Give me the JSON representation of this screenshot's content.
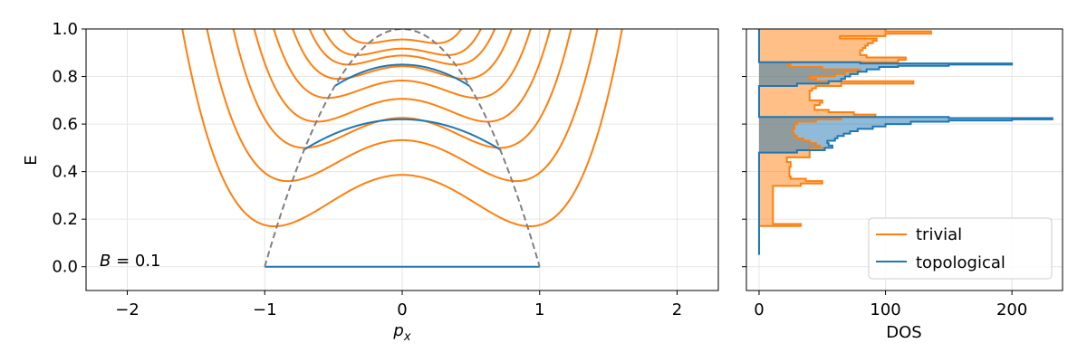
{
  "chart_data": [
    {
      "type": "line",
      "panel": "band structure",
      "xlabel": "p_x",
      "ylabel": "E",
      "xlim": [
        -2.3,
        2.3
      ],
      "ylim": [
        -0.1,
        1.0
      ],
      "xticks": [
        -2,
        -1,
        0,
        1,
        2
      ],
      "xtick_labels": [
        "−2",
        "−1",
        "0",
        "1",
        "2"
      ],
      "yticks": [
        0.0,
        0.2,
        0.4,
        0.6,
        0.8,
        1.0
      ],
      "ytick_labels": [
        "0.0",
        "0.2",
        "0.4",
        "0.6",
        "0.8",
        "1.0"
      ],
      "grid": true,
      "annotation": "B = 0.1",
      "colors": {
        "trivial": "#ff7f0e",
        "topological": "#1f77b4",
        "boundary": "#808080"
      },
      "boundary_curve": {
        "style": "dashed",
        "description": "E = 1 - p_x^2",
        "x_range": [
          -1,
          1
        ]
      },
      "trivial_bands_min": [
        {
          "E_min": 0.17,
          "p_x_at_min": 0.93
        },
        {
          "E_min": 0.36,
          "p_x_at_min": 0.83
        },
        {
          "E_min": 0.5,
          "p_x_at_min": 0.71
        },
        {
          "E_min": 0.61,
          "p_x_at_min": 0.62
        },
        {
          "E_min": 0.71,
          "p_x_at_min": 0.54
        },
        {
          "E_min": 0.79,
          "p_x_at_min": 0.46
        },
        {
          "E_min": 0.85,
          "p_x_at_min": 0.39
        },
        {
          "E_min": 0.89,
          "p_x_at_min": 0.33
        },
        {
          "E_min": 0.94,
          "p_x_at_min": 0.25
        }
      ],
      "topological_bands": [
        {
          "E_at_0": 0.0,
          "p_x_range": [
            -1,
            1
          ]
        },
        {
          "E_at_0": 0.62,
          "p_x_range": [
            -0.72,
            0.72
          ],
          "E_at_ends": 0.49
        },
        {
          "E_at_0": 0.85,
          "p_x_range": [
            -0.49,
            0.49
          ],
          "E_at_ends": 0.76
        }
      ]
    },
    {
      "type": "area",
      "panel": "density of states",
      "xlabel": "DOS",
      "xlim": [
        -10,
        240
      ],
      "ylim": [
        -0.1,
        1.0
      ],
      "xticks": [
        0,
        100,
        200
      ],
      "xtick_labels": [
        "0",
        "100",
        "200"
      ],
      "grid": true,
      "legend": {
        "placement": "lower-right",
        "entries": [
          "trivial",
          "topological"
        ]
      },
      "series": [
        {
          "name": "trivial",
          "color": "#ff7f0e",
          "E": [
            0.17,
            0.171,
            0.18,
            0.18,
            0.25,
            0.25,
            0.33,
            0.34,
            0.35,
            0.36,
            0.37,
            0.38,
            0.38,
            0.42,
            0.44,
            0.45,
            0.46,
            0.46,
            0.5,
            0.5,
            0.51,
            0.52,
            0.53,
            0.54,
            0.55,
            0.56,
            0.56,
            0.58,
            0.6,
            0.61,
            0.61,
            0.62,
            0.63,
            0.64,
            0.65,
            0.66,
            0.66,
            0.68,
            0.69,
            0.7,
            0.7,
            0.71,
            0.72,
            0.73,
            0.74,
            0.75,
            0.76,
            0.76,
            0.77,
            0.78,
            0.78,
            0.79,
            0.79,
            0.8,
            0.81,
            0.82,
            0.83,
            0.84,
            0.84,
            0.85,
            0.85,
            0.86,
            0.86,
            0.87,
            0.88,
            0.89,
            0.89,
            0.9,
            0.91,
            0.92,
            0.93,
            0.94,
            0.95,
            0.96,
            0.97,
            0.98,
            0.99,
            1.0
          ],
          "DOS": [
            0,
            33,
            18,
            11,
            11,
            11,
            11,
            33,
            50,
            37,
            25,
            24,
            24,
            25,
            22,
            22,
            24,
            40,
            52,
            48,
            45,
            40,
            35,
            30,
            28,
            27,
            27,
            28,
            30,
            35,
            45,
            65,
            92,
            75,
            55,
            44,
            44,
            48,
            50,
            43,
            40,
            40,
            40,
            40,
            42,
            45,
            50,
            65,
            122,
            60,
            45,
            42,
            40,
            60,
            68,
            80,
            50,
            28,
            24,
            22,
            25,
            50,
            110,
            116,
            85,
            83,
            80,
            80,
            82,
            84,
            86,
            90,
            93,
            64,
            100,
            136,
            100,
            100
          ]
        },
        {
          "name": "topological",
          "color": "#1f77b4",
          "E": [
            0.05,
            0.3,
            0.46,
            0.47,
            0.48,
            0.49,
            0.5,
            0.51,
            0.52,
            0.53,
            0.54,
            0.55,
            0.56,
            0.57,
            0.58,
            0.59,
            0.6,
            0.61,
            0.615,
            0.62,
            0.625,
            0.63,
            0.7,
            0.75,
            0.76,
            0.77,
            0.78,
            0.79,
            0.8,
            0.81,
            0.82,
            0.83,
            0.84,
            0.845,
            0.85,
            0.855,
            0.86,
            0.95,
            1.0
          ],
          "DOS": [
            0,
            0,
            0,
            0,
            30,
            52,
            58,
            55,
            54,
            60,
            62,
            67,
            72,
            78,
            90,
            100,
            120,
            150,
            200,
            232,
            150,
            0,
            0,
            0,
            30,
            55,
            65,
            68,
            72,
            78,
            85,
            95,
            110,
            150,
            200,
            80,
            0,
            0,
            0
          ]
        }
      ]
    }
  ]
}
